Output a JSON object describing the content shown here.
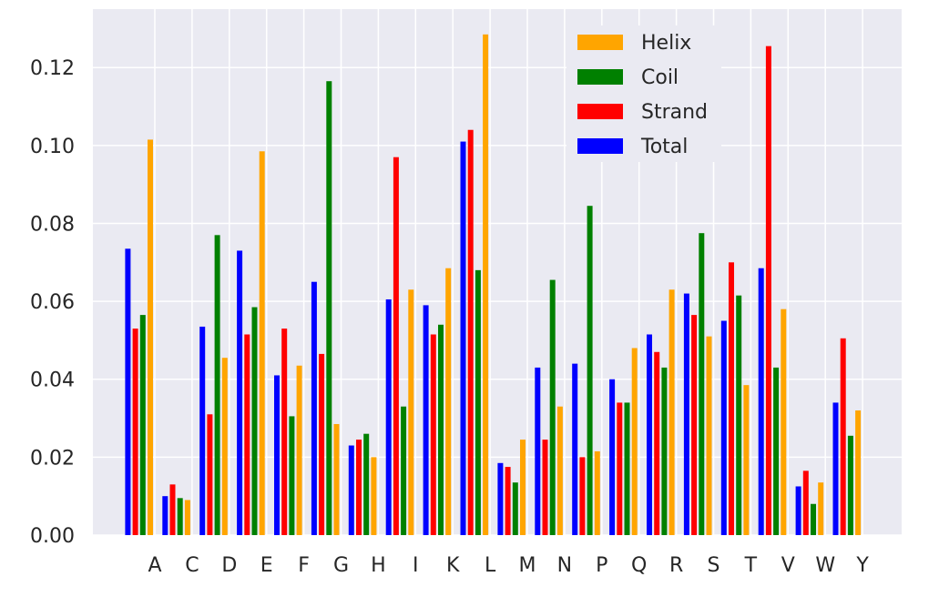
{
  "chart_data": {
    "type": "bar",
    "title": "",
    "xlabel": "",
    "ylabel": "",
    "categories": [
      "A",
      "C",
      "D",
      "E",
      "F",
      "G",
      "H",
      "I",
      "K",
      "L",
      "M",
      "N",
      "P",
      "Q",
      "R",
      "S",
      "T",
      "V",
      "W",
      "Y"
    ],
    "ylim": [
      0,
      0.135
    ],
    "yticks": [
      0.0,
      0.02,
      0.04,
      0.06,
      0.08,
      0.1,
      0.12
    ],
    "ytick_labels": [
      "0.00",
      "0.02",
      "0.04",
      "0.06",
      "0.08",
      "0.10",
      "0.12"
    ],
    "grid": true,
    "legend_position": "top-right",
    "series": [
      {
        "name": "Total",
        "color": "#0000ff",
        "values": [
          0.0735,
          0.01,
          0.0535,
          0.073,
          0.041,
          0.065,
          0.023,
          0.0605,
          0.059,
          0.101,
          0.0185,
          0.043,
          0.044,
          0.04,
          0.0515,
          0.062,
          0.055,
          0.0685,
          0.0125,
          0.034
        ]
      },
      {
        "name": "Strand",
        "color": "#ff0000",
        "values": [
          0.053,
          0.013,
          0.031,
          0.0515,
          0.053,
          0.0465,
          0.0245,
          0.097,
          0.0515,
          0.104,
          0.0175,
          0.0245,
          0.02,
          0.034,
          0.047,
          0.0565,
          0.07,
          0.1255,
          0.0165,
          0.0505
        ]
      },
      {
        "name": "Coil",
        "color": "#008000",
        "values": [
          0.0565,
          0.0095,
          0.077,
          0.0585,
          0.0305,
          0.1165,
          0.026,
          0.033,
          0.054,
          0.068,
          0.0135,
          0.0655,
          0.0845,
          0.034,
          0.043,
          0.0775,
          0.0615,
          0.043,
          0.008,
          0.0255
        ]
      },
      {
        "name": "Helix",
        "color": "#ffa500",
        "values": [
          0.1015,
          0.009,
          0.0455,
          0.0985,
          0.0435,
          0.0285,
          0.02,
          0.063,
          0.0685,
          0.1285,
          0.0245,
          0.033,
          0.0215,
          0.048,
          0.063,
          0.051,
          0.0385,
          0.058,
          0.0135,
          0.032
        ]
      }
    ],
    "legend_entries": [
      {
        "label": "Helix",
        "color": "#ffa500"
      },
      {
        "label": "Coil",
        "color": "#008000"
      },
      {
        "label": "Strand",
        "color": "#ff0000"
      },
      {
        "label": "Total",
        "color": "#0000ff"
      }
    ],
    "colors": {
      "plot_background": "#eaeaf2",
      "grid": "#ffffff"
    }
  }
}
